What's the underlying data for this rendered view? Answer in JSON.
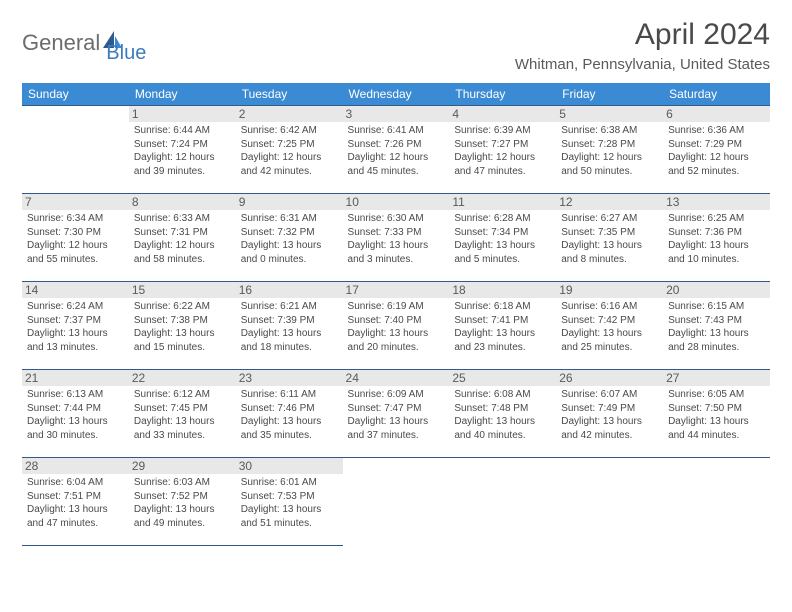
{
  "logo": {
    "text1": "General",
    "text2": "Blue"
  },
  "title": "April 2024",
  "location": "Whitman, Pennsylvania, United States",
  "colors": {
    "headerBg": "#3b8bd4",
    "headerText": "#ffffff",
    "dayBg": "#e8e8e8",
    "border": "#2f5a8a",
    "bodyText": "#4a4a4a",
    "logoGray": "#6c6c6c",
    "logoBlue": "#3b7bbf"
  },
  "weekdays": [
    "Sunday",
    "Monday",
    "Tuesday",
    "Wednesday",
    "Thursday",
    "Friday",
    "Saturday"
  ],
  "weeks": [
    [
      {
        "empty": true
      },
      {
        "num": "1",
        "sunrise": "Sunrise: 6:44 AM",
        "sunset": "Sunset: 7:24 PM",
        "day1": "Daylight: 12 hours",
        "day2": "and 39 minutes."
      },
      {
        "num": "2",
        "sunrise": "Sunrise: 6:42 AM",
        "sunset": "Sunset: 7:25 PM",
        "day1": "Daylight: 12 hours",
        "day2": "and 42 minutes."
      },
      {
        "num": "3",
        "sunrise": "Sunrise: 6:41 AM",
        "sunset": "Sunset: 7:26 PM",
        "day1": "Daylight: 12 hours",
        "day2": "and 45 minutes."
      },
      {
        "num": "4",
        "sunrise": "Sunrise: 6:39 AM",
        "sunset": "Sunset: 7:27 PM",
        "day1": "Daylight: 12 hours",
        "day2": "and 47 minutes."
      },
      {
        "num": "5",
        "sunrise": "Sunrise: 6:38 AM",
        "sunset": "Sunset: 7:28 PM",
        "day1": "Daylight: 12 hours",
        "day2": "and 50 minutes."
      },
      {
        "num": "6",
        "sunrise": "Sunrise: 6:36 AM",
        "sunset": "Sunset: 7:29 PM",
        "day1": "Daylight: 12 hours",
        "day2": "and 52 minutes."
      }
    ],
    [
      {
        "num": "7",
        "sunrise": "Sunrise: 6:34 AM",
        "sunset": "Sunset: 7:30 PM",
        "day1": "Daylight: 12 hours",
        "day2": "and 55 minutes."
      },
      {
        "num": "8",
        "sunrise": "Sunrise: 6:33 AM",
        "sunset": "Sunset: 7:31 PM",
        "day1": "Daylight: 12 hours",
        "day2": "and 58 minutes."
      },
      {
        "num": "9",
        "sunrise": "Sunrise: 6:31 AM",
        "sunset": "Sunset: 7:32 PM",
        "day1": "Daylight: 13 hours",
        "day2": "and 0 minutes."
      },
      {
        "num": "10",
        "sunrise": "Sunrise: 6:30 AM",
        "sunset": "Sunset: 7:33 PM",
        "day1": "Daylight: 13 hours",
        "day2": "and 3 minutes."
      },
      {
        "num": "11",
        "sunrise": "Sunrise: 6:28 AM",
        "sunset": "Sunset: 7:34 PM",
        "day1": "Daylight: 13 hours",
        "day2": "and 5 minutes."
      },
      {
        "num": "12",
        "sunrise": "Sunrise: 6:27 AM",
        "sunset": "Sunset: 7:35 PM",
        "day1": "Daylight: 13 hours",
        "day2": "and 8 minutes."
      },
      {
        "num": "13",
        "sunrise": "Sunrise: 6:25 AM",
        "sunset": "Sunset: 7:36 PM",
        "day1": "Daylight: 13 hours",
        "day2": "and 10 minutes."
      }
    ],
    [
      {
        "num": "14",
        "sunrise": "Sunrise: 6:24 AM",
        "sunset": "Sunset: 7:37 PM",
        "day1": "Daylight: 13 hours",
        "day2": "and 13 minutes."
      },
      {
        "num": "15",
        "sunrise": "Sunrise: 6:22 AM",
        "sunset": "Sunset: 7:38 PM",
        "day1": "Daylight: 13 hours",
        "day2": "and 15 minutes."
      },
      {
        "num": "16",
        "sunrise": "Sunrise: 6:21 AM",
        "sunset": "Sunset: 7:39 PM",
        "day1": "Daylight: 13 hours",
        "day2": "and 18 minutes."
      },
      {
        "num": "17",
        "sunrise": "Sunrise: 6:19 AM",
        "sunset": "Sunset: 7:40 PM",
        "day1": "Daylight: 13 hours",
        "day2": "and 20 minutes."
      },
      {
        "num": "18",
        "sunrise": "Sunrise: 6:18 AM",
        "sunset": "Sunset: 7:41 PM",
        "day1": "Daylight: 13 hours",
        "day2": "and 23 minutes."
      },
      {
        "num": "19",
        "sunrise": "Sunrise: 6:16 AM",
        "sunset": "Sunset: 7:42 PM",
        "day1": "Daylight: 13 hours",
        "day2": "and 25 minutes."
      },
      {
        "num": "20",
        "sunrise": "Sunrise: 6:15 AM",
        "sunset": "Sunset: 7:43 PM",
        "day1": "Daylight: 13 hours",
        "day2": "and 28 minutes."
      }
    ],
    [
      {
        "num": "21",
        "sunrise": "Sunrise: 6:13 AM",
        "sunset": "Sunset: 7:44 PM",
        "day1": "Daylight: 13 hours",
        "day2": "and 30 minutes."
      },
      {
        "num": "22",
        "sunrise": "Sunrise: 6:12 AM",
        "sunset": "Sunset: 7:45 PM",
        "day1": "Daylight: 13 hours",
        "day2": "and 33 minutes."
      },
      {
        "num": "23",
        "sunrise": "Sunrise: 6:11 AM",
        "sunset": "Sunset: 7:46 PM",
        "day1": "Daylight: 13 hours",
        "day2": "and 35 minutes."
      },
      {
        "num": "24",
        "sunrise": "Sunrise: 6:09 AM",
        "sunset": "Sunset: 7:47 PM",
        "day1": "Daylight: 13 hours",
        "day2": "and 37 minutes."
      },
      {
        "num": "25",
        "sunrise": "Sunrise: 6:08 AM",
        "sunset": "Sunset: 7:48 PM",
        "day1": "Daylight: 13 hours",
        "day2": "and 40 minutes."
      },
      {
        "num": "26",
        "sunrise": "Sunrise: 6:07 AM",
        "sunset": "Sunset: 7:49 PM",
        "day1": "Daylight: 13 hours",
        "day2": "and 42 minutes."
      },
      {
        "num": "27",
        "sunrise": "Sunrise: 6:05 AM",
        "sunset": "Sunset: 7:50 PM",
        "day1": "Daylight: 13 hours",
        "day2": "and 44 minutes."
      }
    ],
    [
      {
        "num": "28",
        "sunrise": "Sunrise: 6:04 AM",
        "sunset": "Sunset: 7:51 PM",
        "day1": "Daylight: 13 hours",
        "day2": "and 47 minutes."
      },
      {
        "num": "29",
        "sunrise": "Sunrise: 6:03 AM",
        "sunset": "Sunset: 7:52 PM",
        "day1": "Daylight: 13 hours",
        "day2": "and 49 minutes."
      },
      {
        "num": "30",
        "sunrise": "Sunrise: 6:01 AM",
        "sunset": "Sunset: 7:53 PM",
        "day1": "Daylight: 13 hours",
        "day2": "and 51 minutes."
      },
      {
        "empty": true
      },
      {
        "empty": true
      },
      {
        "empty": true
      },
      {
        "empty": true
      }
    ]
  ]
}
